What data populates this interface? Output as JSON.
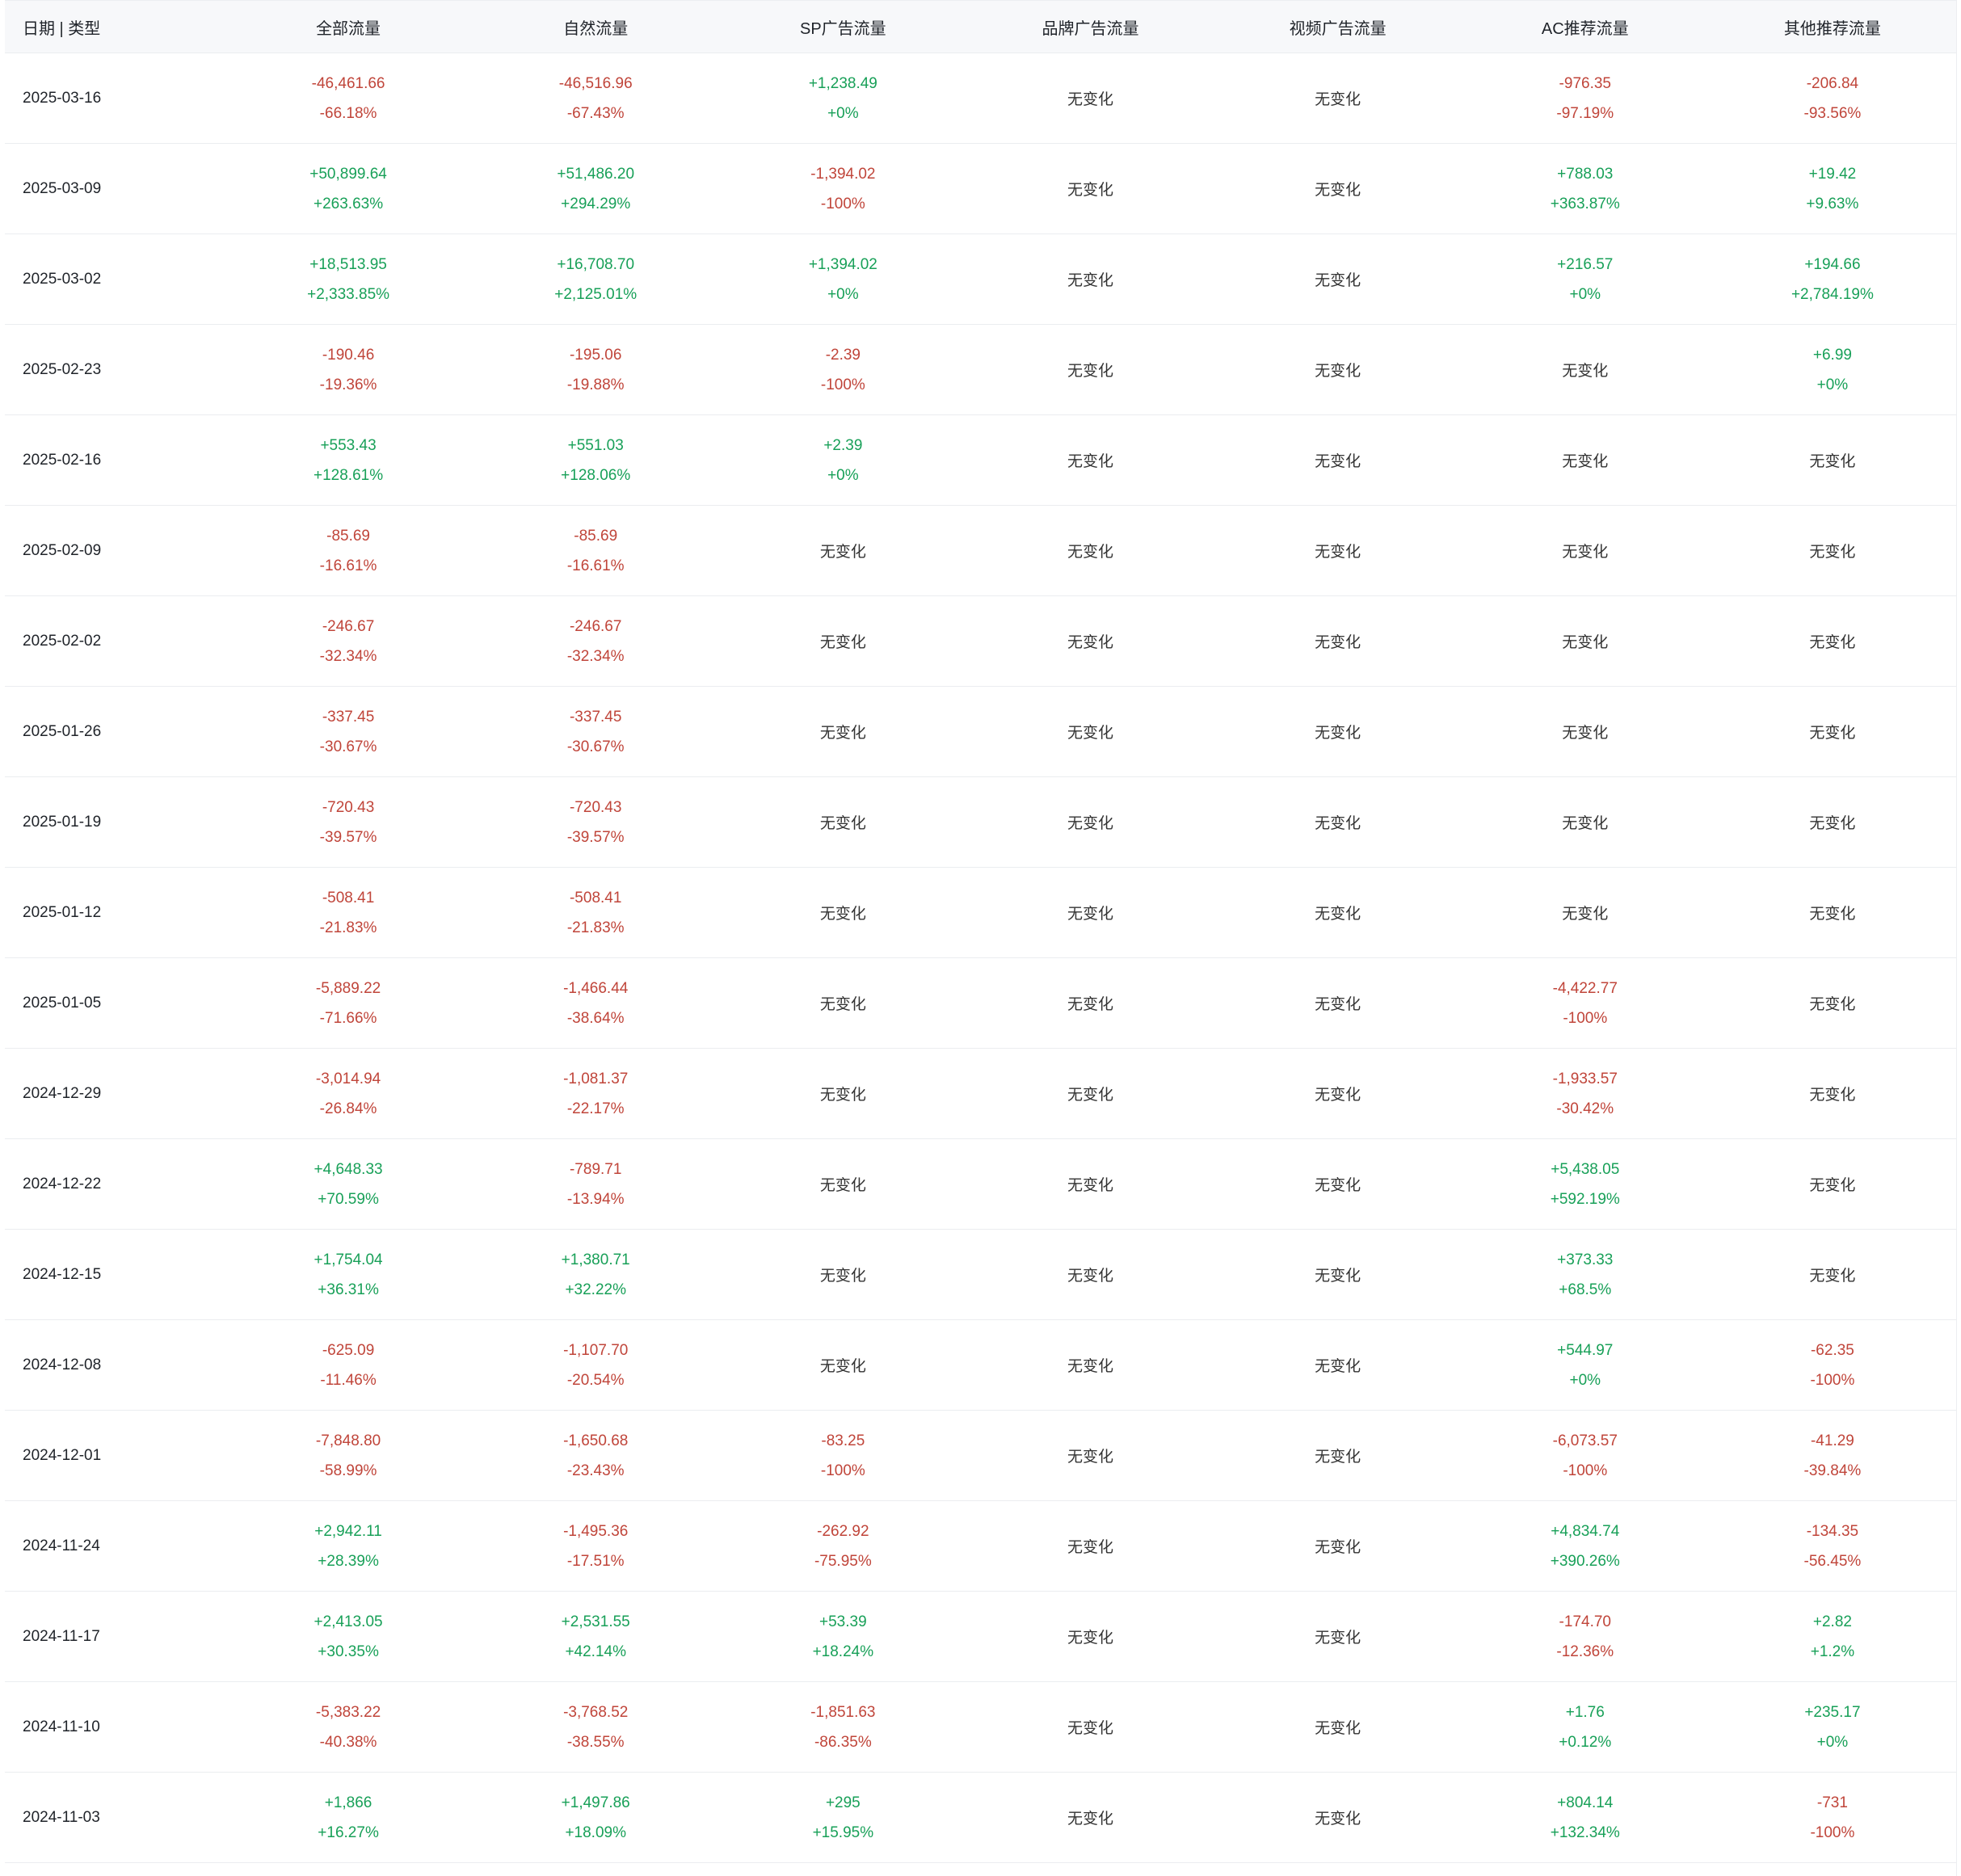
{
  "table": {
    "headers": [
      "日期 | 类型",
      "全部流量",
      "自然流量",
      "SP广告流量",
      "品牌广告流量",
      "视频广告流量",
      "AC推荐流量",
      "其他推荐流量"
    ],
    "no_change_label": "无变化",
    "colors": {
      "positive": "#18a058",
      "negative": "#c0453a"
    },
    "rows": [
      {
        "date": "2025-03-16",
        "cells": [
          [
            "-46,461.66",
            "-66.18%"
          ],
          [
            "-46,516.96",
            "-67.43%"
          ],
          [
            "+1,238.49",
            "+0%"
          ],
          null,
          null,
          [
            "-976.35",
            "-97.19%"
          ],
          [
            "-206.84",
            "-93.56%"
          ]
        ]
      },
      {
        "date": "2025-03-09",
        "cells": [
          [
            "+50,899.64",
            "+263.63%"
          ],
          [
            "+51,486.20",
            "+294.29%"
          ],
          [
            "-1,394.02",
            "-100%"
          ],
          null,
          null,
          [
            "+788.03",
            "+363.87%"
          ],
          [
            "+19.42",
            "+9.63%"
          ]
        ]
      },
      {
        "date": "2025-03-02",
        "cells": [
          [
            "+18,513.95",
            "+2,333.85%"
          ],
          [
            "+16,708.70",
            "+2,125.01%"
          ],
          [
            "+1,394.02",
            "+0%"
          ],
          null,
          null,
          [
            "+216.57",
            "+0%"
          ],
          [
            "+194.66",
            "+2,784.19%"
          ]
        ]
      },
      {
        "date": "2025-02-23",
        "cells": [
          [
            "-190.46",
            "-19.36%"
          ],
          [
            "-195.06",
            "-19.88%"
          ],
          [
            "-2.39",
            "-100%"
          ],
          null,
          null,
          null,
          [
            "+6.99",
            "+0%"
          ]
        ]
      },
      {
        "date": "2025-02-16",
        "cells": [
          [
            "+553.43",
            "+128.61%"
          ],
          [
            "+551.03",
            "+128.06%"
          ],
          [
            "+2.39",
            "+0%"
          ],
          null,
          null,
          null,
          null
        ]
      },
      {
        "date": "2025-02-09",
        "cells": [
          [
            "-85.69",
            "-16.61%"
          ],
          [
            "-85.69",
            "-16.61%"
          ],
          null,
          null,
          null,
          null,
          null
        ]
      },
      {
        "date": "2025-02-02",
        "cells": [
          [
            "-246.67",
            "-32.34%"
          ],
          [
            "-246.67",
            "-32.34%"
          ],
          null,
          null,
          null,
          null,
          null
        ]
      },
      {
        "date": "2025-01-26",
        "cells": [
          [
            "-337.45",
            "-30.67%"
          ],
          [
            "-337.45",
            "-30.67%"
          ],
          null,
          null,
          null,
          null,
          null
        ]
      },
      {
        "date": "2025-01-19",
        "cells": [
          [
            "-720.43",
            "-39.57%"
          ],
          [
            "-720.43",
            "-39.57%"
          ],
          null,
          null,
          null,
          null,
          null
        ]
      },
      {
        "date": "2025-01-12",
        "cells": [
          [
            "-508.41",
            "-21.83%"
          ],
          [
            "-508.41",
            "-21.83%"
          ],
          null,
          null,
          null,
          null,
          null
        ]
      },
      {
        "date": "2025-01-05",
        "cells": [
          [
            "-5,889.22",
            "-71.66%"
          ],
          [
            "-1,466.44",
            "-38.64%"
          ],
          null,
          null,
          null,
          [
            "-4,422.77",
            "-100%"
          ],
          null
        ]
      },
      {
        "date": "2024-12-29",
        "cells": [
          [
            "-3,014.94",
            "-26.84%"
          ],
          [
            "-1,081.37",
            "-22.17%"
          ],
          null,
          null,
          null,
          [
            "-1,933.57",
            "-30.42%"
          ],
          null
        ]
      },
      {
        "date": "2024-12-22",
        "cells": [
          [
            "+4,648.33",
            "+70.59%"
          ],
          [
            "-789.71",
            "-13.94%"
          ],
          null,
          null,
          null,
          [
            "+5,438.05",
            "+592.19%"
          ],
          null
        ]
      },
      {
        "date": "2024-12-15",
        "cells": [
          [
            "+1,754.04",
            "+36.31%"
          ],
          [
            "+1,380.71",
            "+32.22%"
          ],
          null,
          null,
          null,
          [
            "+373.33",
            "+68.5%"
          ],
          null
        ]
      },
      {
        "date": "2024-12-08",
        "cells": [
          [
            "-625.09",
            "-11.46%"
          ],
          [
            "-1,107.70",
            "-20.54%"
          ],
          null,
          null,
          null,
          [
            "+544.97",
            "+0%"
          ],
          [
            "-62.35",
            "-100%"
          ]
        ]
      },
      {
        "date": "2024-12-01",
        "cells": [
          [
            "-7,848.80",
            "-58.99%"
          ],
          [
            "-1,650.68",
            "-23.43%"
          ],
          [
            "-83.25",
            "-100%"
          ],
          null,
          null,
          [
            "-6,073.57",
            "-100%"
          ],
          [
            "-41.29",
            "-39.84%"
          ]
        ]
      },
      {
        "date": "2024-11-24",
        "cells": [
          [
            "+2,942.11",
            "+28.39%"
          ],
          [
            "-1,495.36",
            "-17.51%"
          ],
          [
            "-262.92",
            "-75.95%"
          ],
          null,
          null,
          [
            "+4,834.74",
            "+390.26%"
          ],
          [
            "-134.35",
            "-56.45%"
          ]
        ]
      },
      {
        "date": "2024-11-17",
        "cells": [
          [
            "+2,413.05",
            "+30.35%"
          ],
          [
            "+2,531.55",
            "+42.14%"
          ],
          [
            "+53.39",
            "+18.24%"
          ],
          null,
          null,
          [
            "-174.70",
            "-12.36%"
          ],
          [
            "+2.82",
            "+1.2%"
          ]
        ]
      },
      {
        "date": "2024-11-10",
        "cells": [
          [
            "-5,383.22",
            "-40.38%"
          ],
          [
            "-3,768.52",
            "-38.55%"
          ],
          [
            "-1,851.63",
            "-86.35%"
          ],
          null,
          null,
          [
            "+1.76",
            "+0.12%"
          ],
          [
            "+235.17",
            "+0%"
          ]
        ]
      },
      {
        "date": "2024-11-03",
        "cells": [
          [
            "+1,866",
            "+16.27%"
          ],
          [
            "+1,497.86",
            "+18.09%"
          ],
          [
            "+295",
            "+15.95%"
          ],
          null,
          null,
          [
            "+804.14",
            "+132.34%"
          ],
          [
            "-731",
            "-100%"
          ]
        ]
      }
    ]
  }
}
